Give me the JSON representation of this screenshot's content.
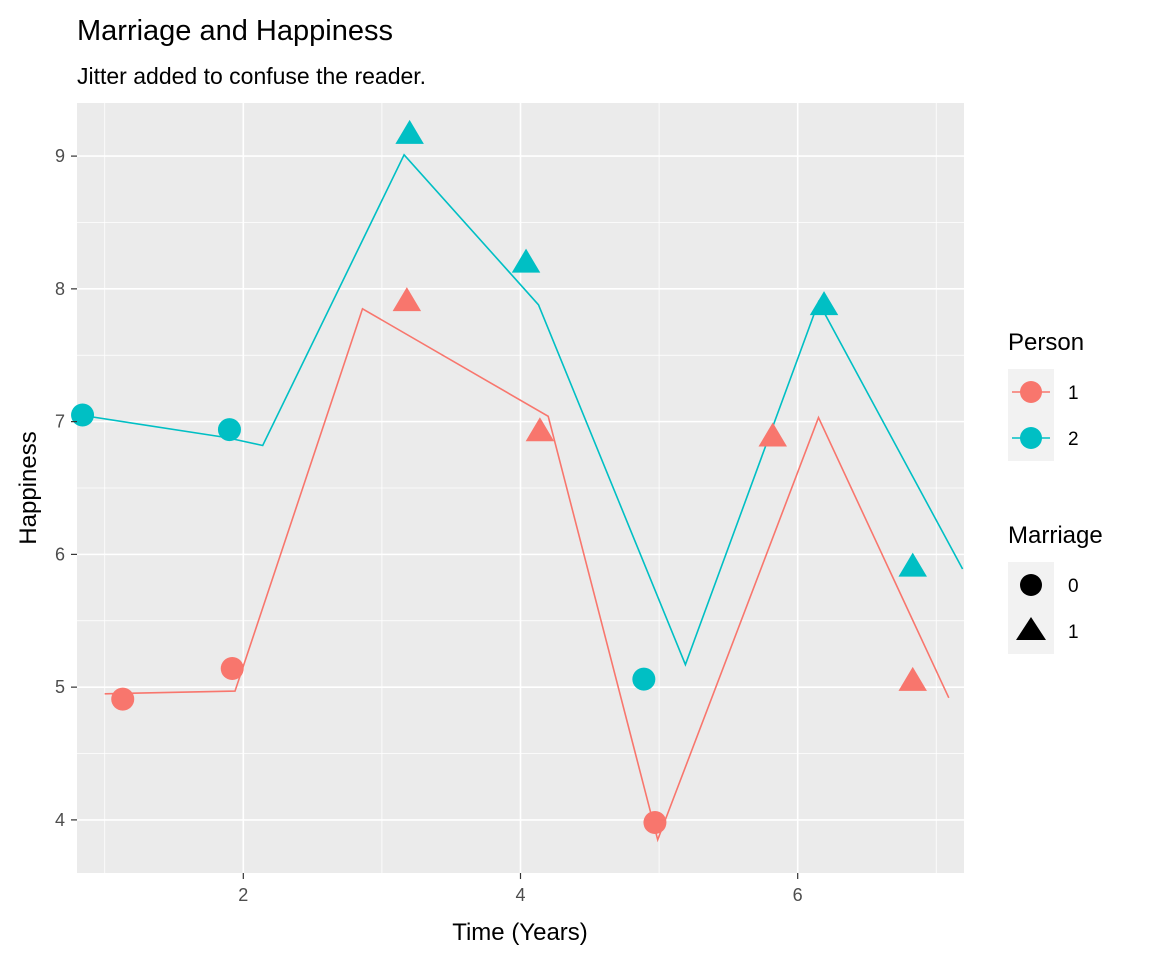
{
  "chart_data": {
    "type": "line",
    "title": "Marriage and Happiness",
    "subtitle": "Jitter added to confuse the reader.",
    "xlabel": "Time (Years)",
    "ylabel": "Happiness",
    "xlim": [
      0.8,
      7.2
    ],
    "ylim": [
      3.6,
      9.4
    ],
    "xticks": [
      2,
      4,
      6
    ],
    "yticks": [
      4,
      5,
      6,
      7,
      8,
      9
    ],
    "grid": true,
    "legend_placement": "right",
    "series": [
      {
        "name": "1",
        "color": "#F8766D",
        "line": [
          [
            1.0,
            4.95
          ],
          [
            1.94,
            4.97
          ],
          [
            2.86,
            7.85
          ],
          [
            4.2,
            7.04
          ],
          [
            4.99,
            3.85
          ],
          [
            6.15,
            7.03
          ],
          [
            7.09,
            4.92
          ]
        ],
        "points": [
          {
            "x": 1.13,
            "y": 4.91,
            "marriage": "0"
          },
          {
            "x": 1.92,
            "y": 5.14,
            "marriage": "0"
          },
          {
            "x": 3.18,
            "y": 7.9,
            "marriage": "1"
          },
          {
            "x": 4.14,
            "y": 6.92,
            "marriage": "1"
          },
          {
            "x": 4.97,
            "y": 3.98,
            "marriage": "0"
          },
          {
            "x": 5.82,
            "y": 6.88,
            "marriage": "1"
          },
          {
            "x": 6.83,
            "y": 5.04,
            "marriage": "1"
          }
        ]
      },
      {
        "name": "2",
        "color": "#00BFC4",
        "line": [
          [
            0.82,
            7.05
          ],
          [
            1.88,
            6.88
          ],
          [
            2.14,
            6.82
          ],
          [
            3.16,
            9.01
          ],
          [
            4.13,
            7.88
          ],
          [
            5.19,
            5.17
          ],
          [
            6.15,
            7.9
          ],
          [
            7.19,
            5.89
          ]
        ],
        "points": [
          {
            "x": 0.84,
            "y": 7.05,
            "marriage": "0"
          },
          {
            "x": 1.9,
            "y": 6.94,
            "marriage": "0"
          },
          {
            "x": 3.2,
            "y": 9.16,
            "marriage": "1"
          },
          {
            "x": 4.04,
            "y": 8.19,
            "marriage": "1"
          },
          {
            "x": 4.89,
            "y": 5.06,
            "marriage": "0"
          },
          {
            "x": 6.19,
            "y": 7.87,
            "marriage": "1"
          },
          {
            "x": 6.83,
            "y": 5.9,
            "marriage": "1"
          }
        ]
      }
    ],
    "legends": [
      {
        "title": "Person",
        "items": [
          {
            "label": "1",
            "color": "#F8766D"
          },
          {
            "label": "2",
            "color": "#00BFC4"
          }
        ]
      },
      {
        "title": "Marriage",
        "items": [
          {
            "label": "0",
            "shape": "circle"
          },
          {
            "label": "1",
            "shape": "triangle"
          }
        ]
      }
    ]
  }
}
